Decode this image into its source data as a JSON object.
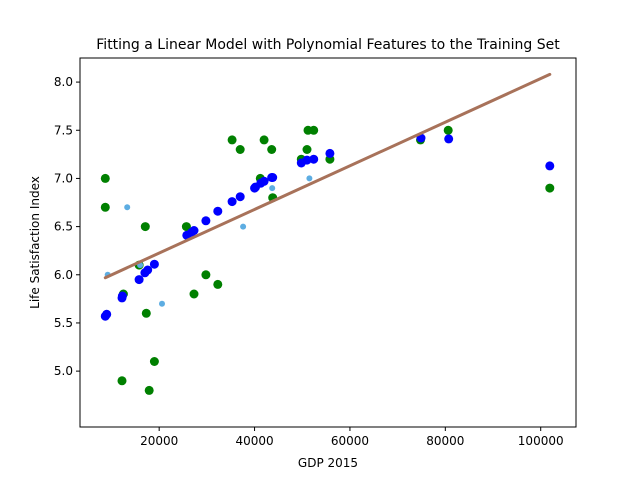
{
  "chart_data": {
    "type": "scatter",
    "title": "Fitting a Linear Model with Polynomial Features to the Training Set",
    "xlabel": "GDP 2015",
    "ylabel": "Life Satisfaction Index",
    "xlim": [
      3400,
      107400
    ],
    "ylim": [
      4.42,
      8.25
    ],
    "xticks": [
      20000,
      40000,
      60000,
      80000,
      100000
    ],
    "yticks": [
      5.0,
      5.5,
      6.0,
      6.5,
      7.0,
      7.5,
      8.0
    ],
    "xtick_labels": [
      "20000",
      "40000",
      "60000",
      "80000",
      "100000"
    ],
    "ytick_labels": [
      "5.0",
      "5.5",
      "6.0",
      "6.5",
      "7.0",
      "7.5",
      "8.0"
    ],
    "grid": false,
    "legend": false,
    "series": [
      {
        "kind": "points",
        "color": "#008000",
        "size": "large",
        "x": [
          8700,
          8700,
          12200,
          12500,
          15800,
          17100,
          17300,
          17900,
          19000,
          25700,
          27300,
          29800,
          32300,
          35300,
          37000,
          41200,
          42000,
          43600,
          43800,
          49800,
          51000,
          51200,
          52400,
          55800,
          74800,
          80600,
          101900
        ],
        "y": [
          7.0,
          6.7,
          4.9,
          5.8,
          6.1,
          6.5,
          5.6,
          4.8,
          5.1,
          6.5,
          5.8,
          6.0,
          5.9,
          7.4,
          7.3,
          7.0,
          7.4,
          7.3,
          6.8,
          7.2,
          7.3,
          7.5,
          7.5,
          7.2,
          7.4,
          7.5,
          6.9
        ]
      },
      {
        "kind": "points",
        "color": "#5dade2",
        "size": "small",
        "x": [
          9200,
          13300,
          16000,
          20600,
          26800,
          37600,
          43700,
          51500
        ],
        "y": [
          6.0,
          6.7,
          6.1,
          5.7,
          6.45,
          6.5,
          6.9,
          7.0
        ]
      },
      {
        "kind": "points",
        "color": "#0000ff",
        "size": "large",
        "x": [
          8700,
          9000,
          12200,
          12300,
          15800,
          17000,
          17600,
          19000,
          25800,
          26800,
          27300,
          29800,
          32300,
          35300,
          37000,
          40000,
          40200,
          41300,
          42000,
          43600,
          43800,
          49800,
          51000,
          52400,
          55800,
          74900,
          80700,
          101900
        ],
        "y": [
          5.57,
          5.59,
          5.76,
          5.78,
          5.95,
          6.02,
          6.05,
          6.11,
          6.41,
          6.44,
          6.46,
          6.56,
          6.66,
          6.76,
          6.81,
          6.9,
          6.91,
          6.95,
          6.97,
          7.01,
          7.01,
          7.16,
          7.19,
          7.2,
          7.26,
          7.42,
          7.41,
          7.13
        ]
      },
      {
        "kind": "line",
        "color": "#a8725a",
        "x": [
          8700,
          101900
        ],
        "y": [
          5.97,
          8.08
        ]
      }
    ]
  }
}
